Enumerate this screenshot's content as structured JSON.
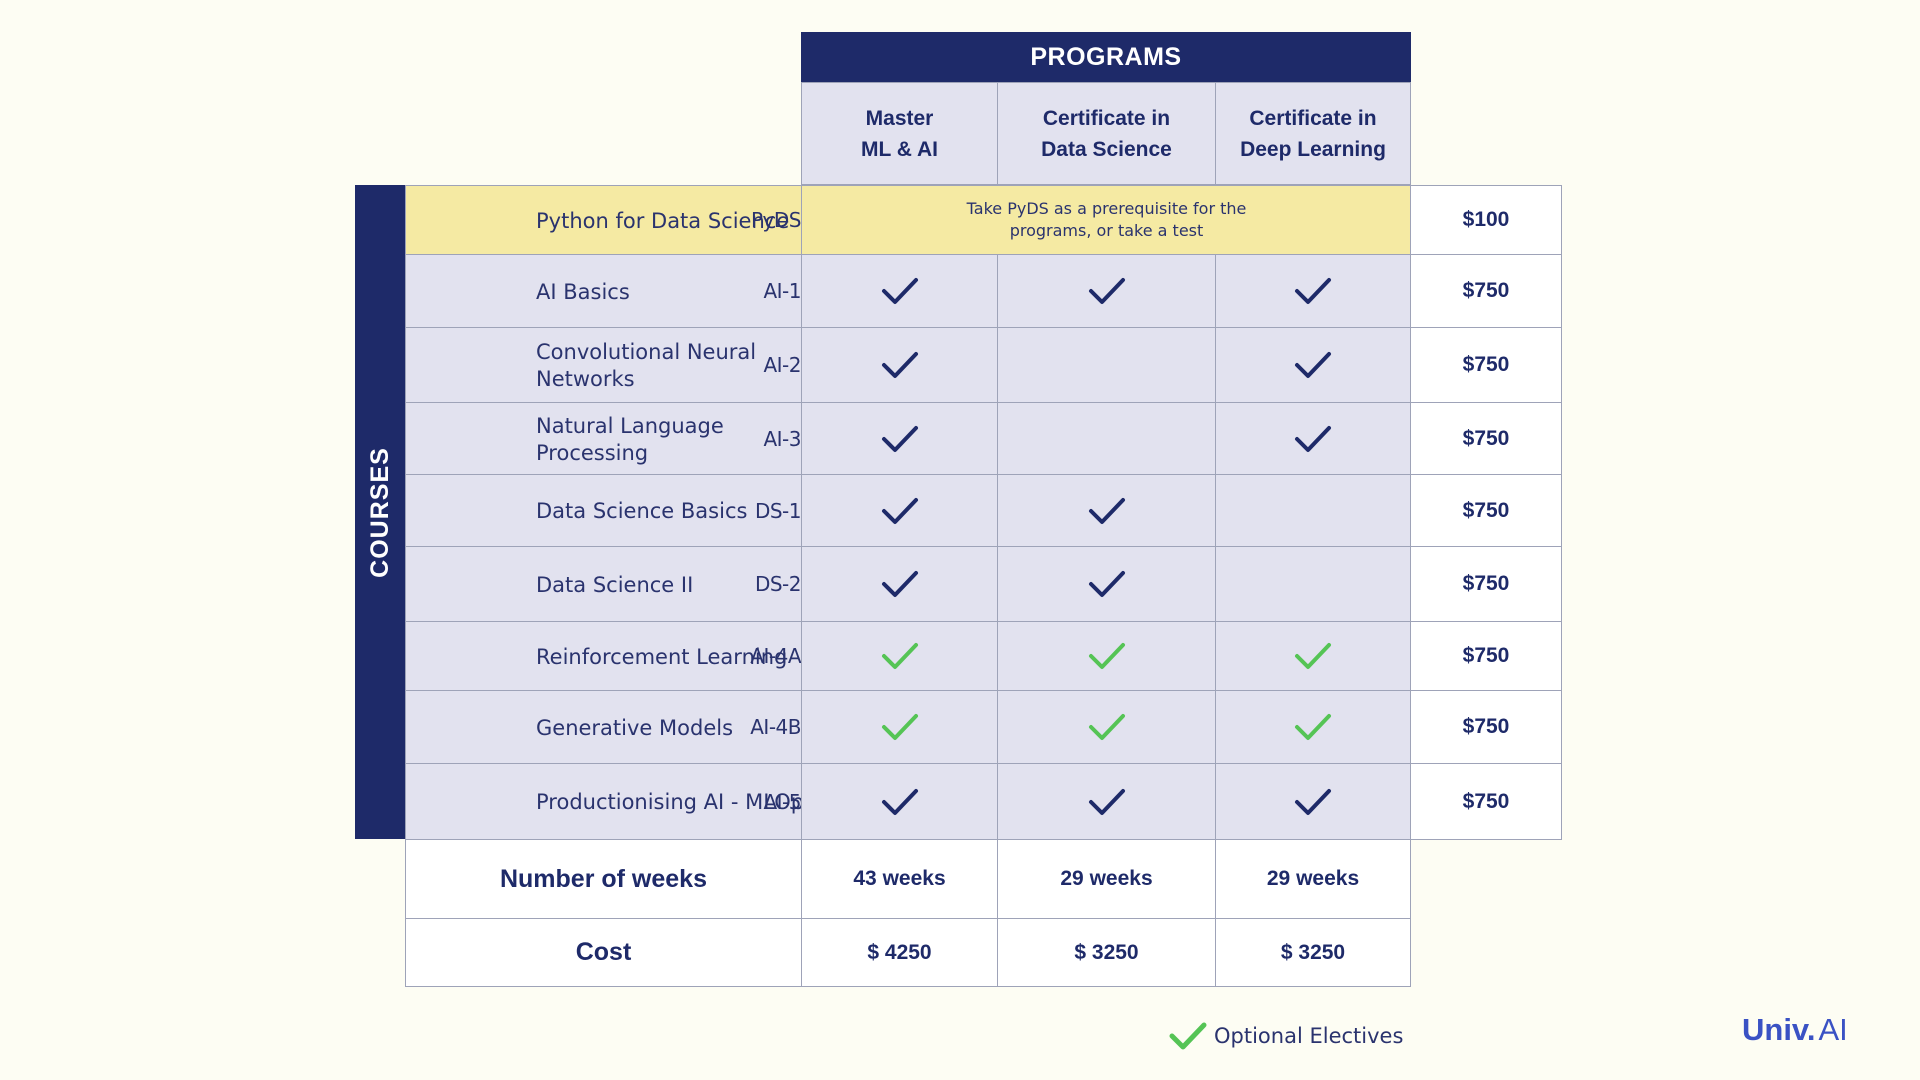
{
  "programs_title": "PROGRAMS",
  "programs": [
    "Master\nML & AI",
    "Certificate in\nData Science",
    "Certificate in\nDeep Learning"
  ],
  "courses_label": "COURSES",
  "prereq_note": "Take PyDS as a prerequisite for the\nprograms, or take a test",
  "courses": [
    {
      "code": "PyDS",
      "name": "Python for Data Science",
      "price": "$100"
    },
    {
      "code": "AI-1",
      "name": "AI Basics",
      "price": "$750"
    },
    {
      "code": "AI-2",
      "name": "Convolutional Neural Networks",
      "price": "$750"
    },
    {
      "code": "AI-3",
      "name": "Natural Language Processing",
      "price": "$750"
    },
    {
      "code": "DS-1",
      "name": "Data Science Basics",
      "price": "$750"
    },
    {
      "code": "DS-2",
      "name": "Data Science II",
      "price": "$750"
    },
    {
      "code": "AI-4A",
      "name": "Reinforcement Learning",
      "price": "$750"
    },
    {
      "code": "AI-4B",
      "name": "Generative Models",
      "price": "$750"
    },
    {
      "code": "AI-5",
      "name": "Productionising AI - MLOps",
      "price": "$750"
    }
  ],
  "matrix": [
    [
      "required",
      "required",
      "required"
    ],
    [
      "required",
      "",
      "required"
    ],
    [
      "required",
      "",
      "required"
    ],
    [
      "required",
      "required",
      ""
    ],
    [
      "required",
      "required",
      ""
    ],
    [
      "optional",
      "optional",
      "optional"
    ],
    [
      "optional",
      "optional",
      "optional"
    ],
    [
      "required",
      "required",
      "required"
    ]
  ],
  "summary": {
    "weeks_label": "Number of weeks",
    "weeks": [
      "43 weeks",
      "29 weeks",
      "29 weeks"
    ],
    "cost_label": "Cost",
    "cost": [
      "$ 4250",
      "$ 3250",
      "$ 3250"
    ]
  },
  "legend": {
    "label": "Optional Electives",
    "icon": "check-icon"
  },
  "brand": {
    "part1": "Univ.",
    "part2": "AI"
  },
  "colors": {
    "navy": "#1e2a69",
    "required_check": "#1e2a69",
    "optional_check": "#55c455",
    "prereq_band": "#f5eaa3",
    "cell_bg": "#e2e2ef"
  }
}
